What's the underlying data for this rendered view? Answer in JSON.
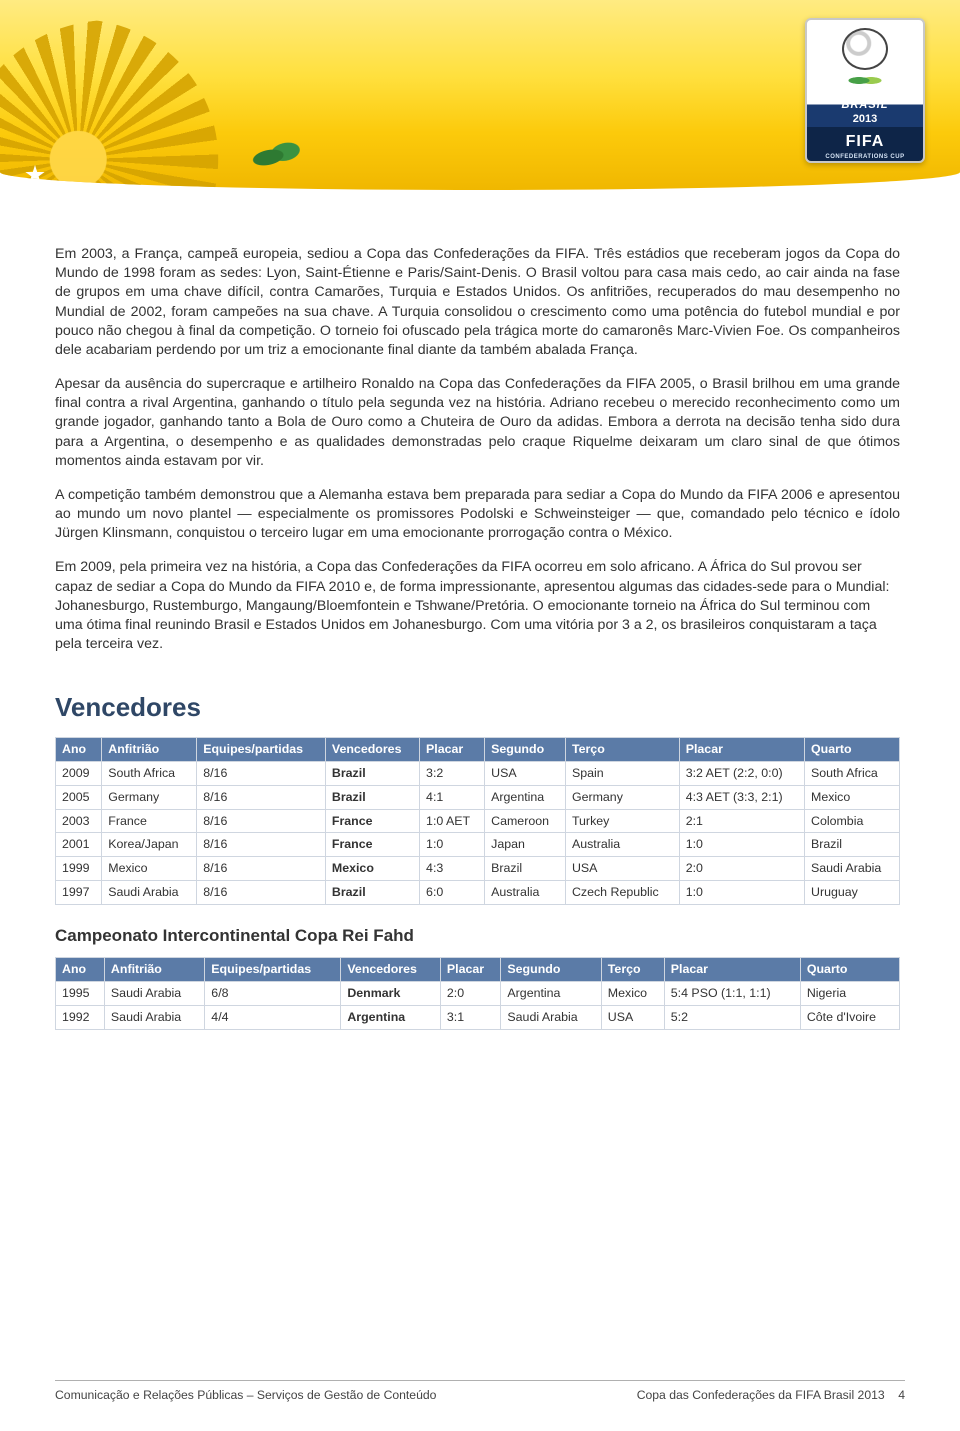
{
  "logo": {
    "brand": "BRASIL",
    "year": "2013",
    "fifa": "FIFA",
    "sub": "CONFEDERATIONS CUP"
  },
  "paragraphs": [
    "Em 2003, a França, campeã europeia, sediou a Copa das Confederações da FIFA. Três estádios que receberam jogos da Copa do Mundo de 1998 foram as sedes: Lyon, Saint-Étienne e Paris/Saint-Denis. O Brasil voltou para casa mais cedo, ao cair ainda na fase de grupos em uma chave difícil, contra Camarões, Turquia e Estados Unidos. Os anfitriões, recuperados do mau desempenho no Mundial de 2002, foram campeões na sua chave. A Turquia consolidou o crescimento como uma potência do futebol mundial e por pouco não chegou à final da competição. O torneio foi ofuscado pela trágica morte do camaronês Marc-Vivien Foe. Os companheiros dele acabariam perdendo por um triz a emocionante final diante da também abalada França.",
    "Apesar da ausência do supercraque e artilheiro Ronaldo na Copa das Confederações da FIFA 2005, o Brasil brilhou em uma grande final contra a rival Argentina, ganhando o título pela segunda vez na história. Adriano recebeu o merecido reconhecimento como um grande jogador, ganhando tanto a Bola de Ouro como a Chuteira de Ouro da adidas. Embora a derrota na decisão tenha sido dura para a Argentina, o desempenho e as qualidades demonstradas pelo craque Riquelme deixaram um claro sinal de que ótimos momentos ainda estavam por vir.",
    "A competição também demonstrou que a Alemanha estava bem preparada para sediar a Copa do Mundo da FIFA 2006 e apresentou ao mundo um novo plantel — especialmente os promissores Podolski e Schweinsteiger — que, comandado pelo técnico e ídolo Jürgen Klinsmann, conquistou o terceiro lugar em uma emocionante prorrogação contra o México.",
    "Em 2009, pela primeira vez na história, a Copa das Confederações da FIFA ocorreu em solo africano. A África do Sul provou ser capaz de sediar a Copa do Mundo da FIFA 2010 e, de forma impressionante, apresentou algumas das cidades-sede para o Mundial: Johanesburgo, Rustemburgo, Mangaung/Bloemfontein e Tshwane/Pretória. O emocionante torneio na África do Sul terminou com uma ótima final reunindo Brasil e Estados Unidos em Johanesburgo. Com uma vitória por 3 a 2, os brasileiros conquistaram a taça pela terceira vez."
  ],
  "headings": {
    "vencedores": "Vencedores",
    "sub": "Campeonato Intercontinental Copa Rei Fahd"
  },
  "table_headers": [
    "Ano",
    "Anfitrião",
    "Equipes/partidas",
    "Vencedores",
    "Placar",
    "Segundo",
    "Terço",
    "Placar",
    "Quarto"
  ],
  "table1": [
    [
      "2009",
      "South Africa",
      "8/16",
      "Brazil",
      "3:2",
      "USA",
      "Spain",
      "3:2 AET (2:2, 0:0)",
      "South Africa"
    ],
    [
      "2005",
      "Germany",
      "8/16",
      "Brazil",
      "4:1",
      "Argentina",
      "Germany",
      "4:3 AET (3:3, 2:1)",
      "Mexico"
    ],
    [
      "2003",
      "France",
      "8/16",
      "France",
      "1:0 AET",
      "Cameroon",
      "Turkey",
      "2:1",
      "Colombia"
    ],
    [
      "2001",
      "Korea/Japan",
      "8/16",
      "France",
      "1:0",
      "Japan",
      "Australia",
      "1:0",
      "Brazil"
    ],
    [
      "1999",
      "Mexico",
      "8/16",
      "Mexico",
      "4:3",
      "Brazil",
      "USA",
      "2:0",
      "Saudi Arabia"
    ],
    [
      "1997",
      "Saudi Arabia",
      "8/16",
      "Brazil",
      "6:0",
      "Australia",
      "Czech Republic",
      "1:0",
      "Uruguay"
    ]
  ],
  "table2": [
    [
      "1995",
      "Saudi Arabia",
      "6/8",
      "Denmark",
      "2:0",
      "Argentina",
      "Mexico",
      "5:4 PSO (1:1, 1:1)",
      "Nigeria"
    ],
    [
      "1992",
      "Saudi Arabia",
      "4/4",
      "Argentina",
      "3:1",
      "Saudi Arabia",
      "USA",
      "5:2",
      "Côte d'Ivoire"
    ]
  ],
  "footer": {
    "left": "Comunicação e Relações Públicas – Serviços de Gestão de Conteúdo",
    "right": "Copa das Confederações da FIFA Brasil 2013",
    "page": "4"
  },
  "colors": {
    "header_bg": "#5b7ba7",
    "border": "#cfd6e0",
    "heading": "#2f4766"
  }
}
